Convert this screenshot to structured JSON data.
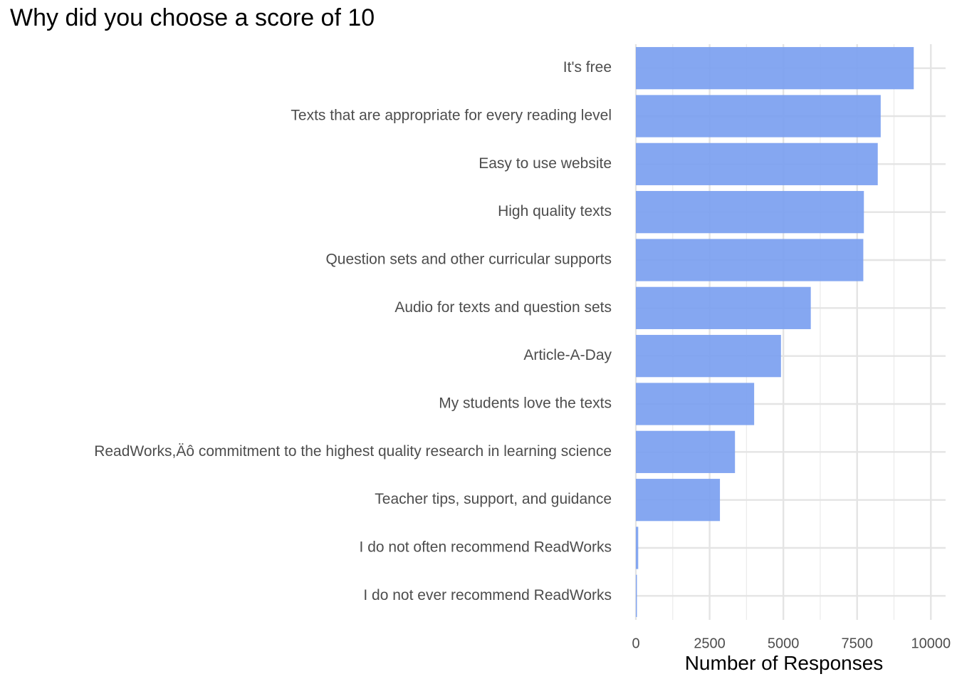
{
  "chart_data": {
    "type": "bar",
    "orientation": "horizontal",
    "title": "Why did you choose a score of 10",
    "xlabel": "Number of Responses",
    "ylabel": "",
    "xlim": [
      0,
      10500
    ],
    "xticks": [
      0,
      2500,
      5000,
      7500,
      10000
    ],
    "grid": true,
    "bar_color": "#7b9ff0",
    "categories": [
      "It's free",
      "Texts that are appropriate for every reading level",
      "Easy to use website",
      "High quality texts",
      "Question sets and other curricular supports",
      "Audio for texts and question sets",
      "Article-A-Day",
      "My students love the texts",
      "ReadWorks,Äô commitment to the highest quality research in learning science",
      "Teacher tips, support, and guidance",
      "I do not often recommend ReadWorks",
      "I do not ever recommend ReadWorks"
    ],
    "values": [
      9420,
      8300,
      8200,
      7730,
      7710,
      5930,
      4920,
      4010,
      3360,
      2850,
      80,
      30
    ]
  }
}
